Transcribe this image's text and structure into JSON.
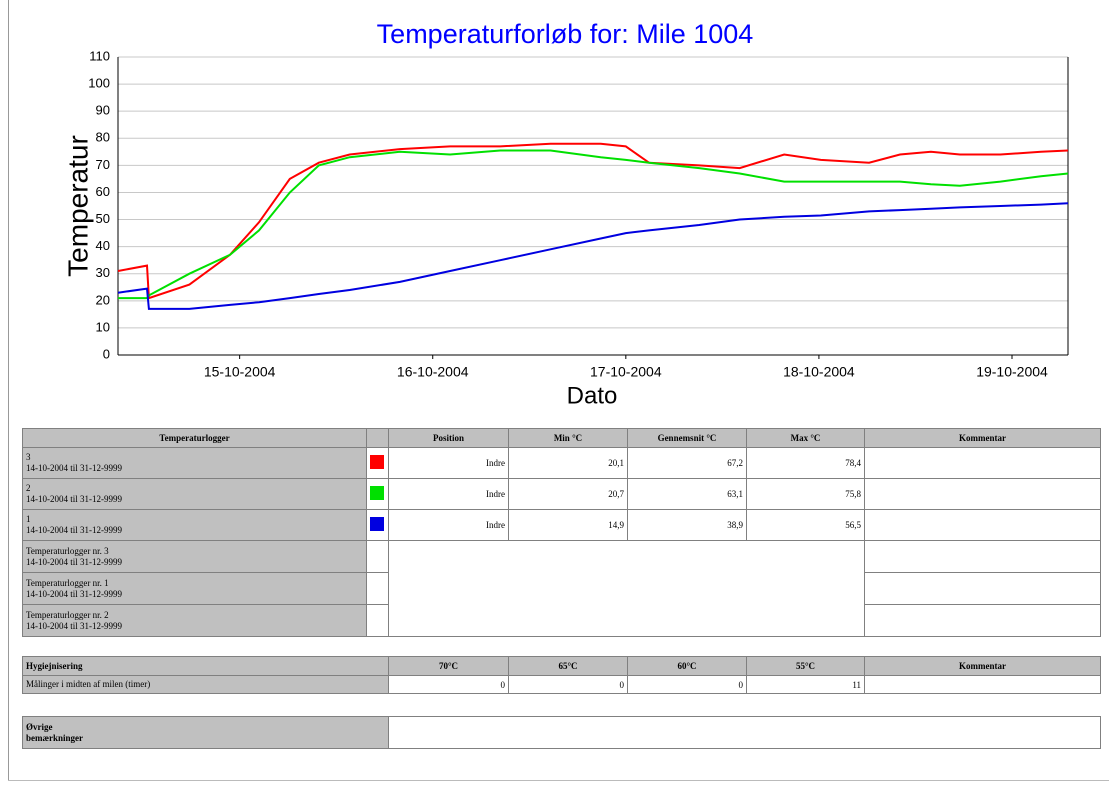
{
  "chart_data": {
    "type": "line",
    "title": "Temperaturforløb for: Mile 1004",
    "x_label": "Dato",
    "y_label": "Temperatur",
    "x": [
      14.37,
      14.52,
      14.53,
      14.74,
      14.95,
      15.1,
      15.26,
      15.41,
      15.57,
      15.83,
      16.09,
      16.35,
      16.61,
      16.87,
      17.0,
      17.12,
      17.38,
      17.59,
      17.82,
      18.01,
      18.26,
      18.42,
      18.58,
      18.73,
      18.94,
      19.15,
      19.29
    ],
    "series": [
      {
        "color": "#ff0000",
        "values": [
          31,
          33,
          21,
          26,
          37,
          49,
          65,
          71,
          74,
          76,
          77,
          77,
          78,
          78,
          77,
          71,
          70,
          69,
          74,
          72,
          71,
          74,
          75,
          74,
          74,
          75,
          75.5
        ]
      },
      {
        "color": "#00e000",
        "values": [
          21,
          21,
          22,
          30,
          37,
          46,
          60,
          70,
          73,
          75,
          74,
          75.5,
          75.5,
          73,
          72,
          71,
          69,
          67,
          64,
          64,
          64,
          64,
          63,
          62.5,
          64,
          66,
          67
        ]
      },
      {
        "color": "#0000e0",
        "values": [
          23,
          24.5,
          17,
          17,
          18.5,
          19.5,
          21,
          22.5,
          24,
          27,
          31,
          35,
          39,
          43,
          45,
          46,
          48,
          50,
          51,
          51.5,
          53,
          53.5,
          54,
          54.5,
          55,
          55.5,
          56
        ]
      }
    ],
    "xlim": [
      14.37,
      19.29
    ],
    "xticks": [
      {
        "value": 15,
        "label": "15-10-2004"
      },
      {
        "value": 16,
        "label": "16-10-2004"
      },
      {
        "value": 17,
        "label": "17-10-2004"
      },
      {
        "value": 18,
        "label": "18-10-2004"
      },
      {
        "value": 19,
        "label": "19-10-2004"
      }
    ],
    "ylim": [
      0,
      110
    ],
    "yticks": [
      0,
      10,
      20,
      30,
      40,
      50,
      60,
      70,
      80,
      90,
      100,
      110
    ],
    "grid": true
  },
  "loggers": {
    "header": [
      "Temperaturlogger",
      "Position",
      "Min °C",
      "Gennemsnit °C",
      "Max °C",
      "Kommentar"
    ],
    "rows": [
      {
        "name": "3",
        "period": "14-10-2004 til 31-12-9999",
        "position": "Indre",
        "min": "20,1",
        "avg": "67,2",
        "max": "78,4"
      },
      {
        "name": "2",
        "period": "14-10-2004 til 31-12-9999",
        "position": "Indre",
        "min": "20,7",
        "avg": "63,1",
        "max": "75,8"
      },
      {
        "name": "1",
        "period": "14-10-2004 til 31-12-9999",
        "position": "Indre",
        "min": "14,9",
        "avg": "38,9",
        "max": "56,5"
      }
    ],
    "extra": [
      {
        "name": "Temperaturlogger nr. 3",
        "period": "14-10-2004 til 31-12-9999"
      },
      {
        "name": "Temperaturlogger nr. 1",
        "period": "14-10-2004 til 31-12-9999"
      },
      {
        "name": "Temperaturlogger nr. 2",
        "period": "14-10-2004 til 31-12-9999"
      }
    ]
  },
  "hygiene": {
    "header": [
      "Hygiejnisering",
      "70°C",
      "65°C",
      "60°C",
      "55°C",
      "Kommentar"
    ],
    "row_label": "Målinger i midten af milen (timer)",
    "values": [
      "0",
      "0",
      "0",
      "11"
    ]
  },
  "remarks": {
    "label_lines": [
      "Øvrige",
      "bemærkninger"
    ]
  }
}
